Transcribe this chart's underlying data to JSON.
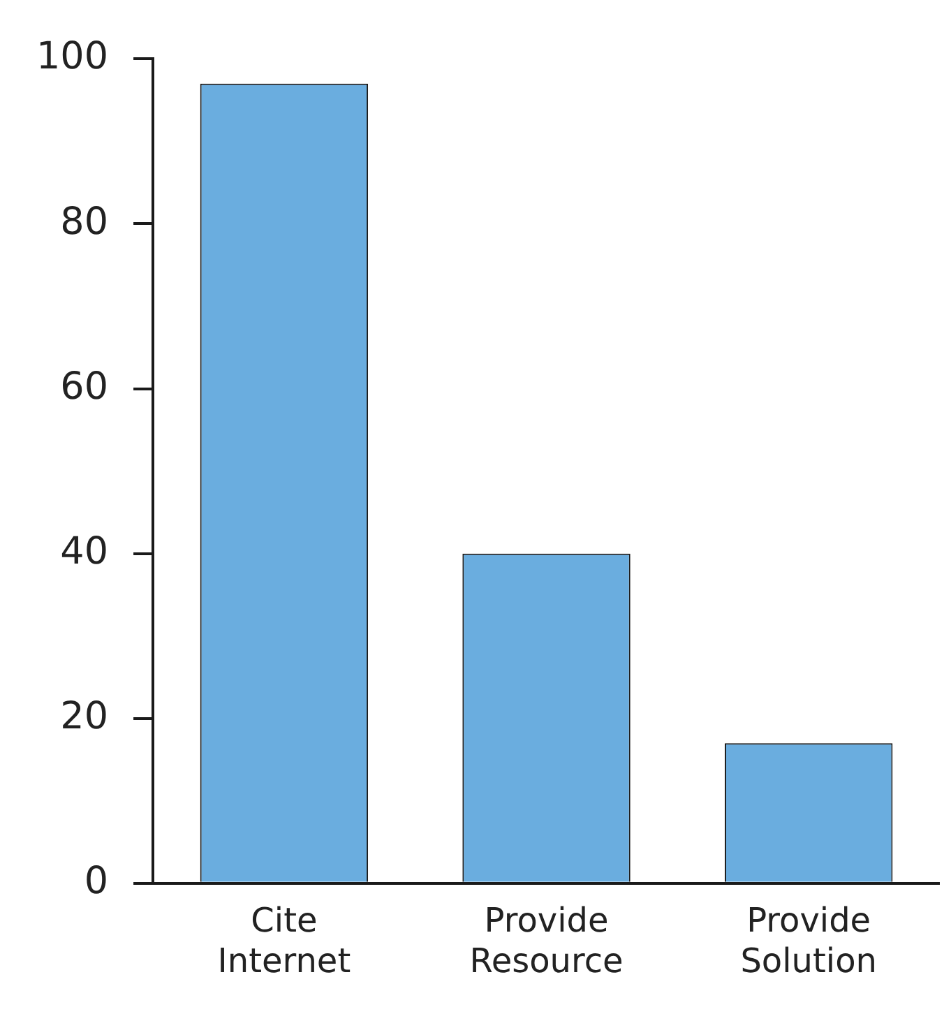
{
  "chart_data": {
    "type": "bar",
    "categories": [
      "Cite Internet",
      "Provide Resource",
      "Provide Solution"
    ],
    "values": [
      97,
      40,
      17
    ],
    "color": "#6aaddf",
    "ylim": [
      0,
      100
    ],
    "yticks": [
      0,
      20,
      40,
      60,
      80,
      100
    ],
    "grid": false
  }
}
